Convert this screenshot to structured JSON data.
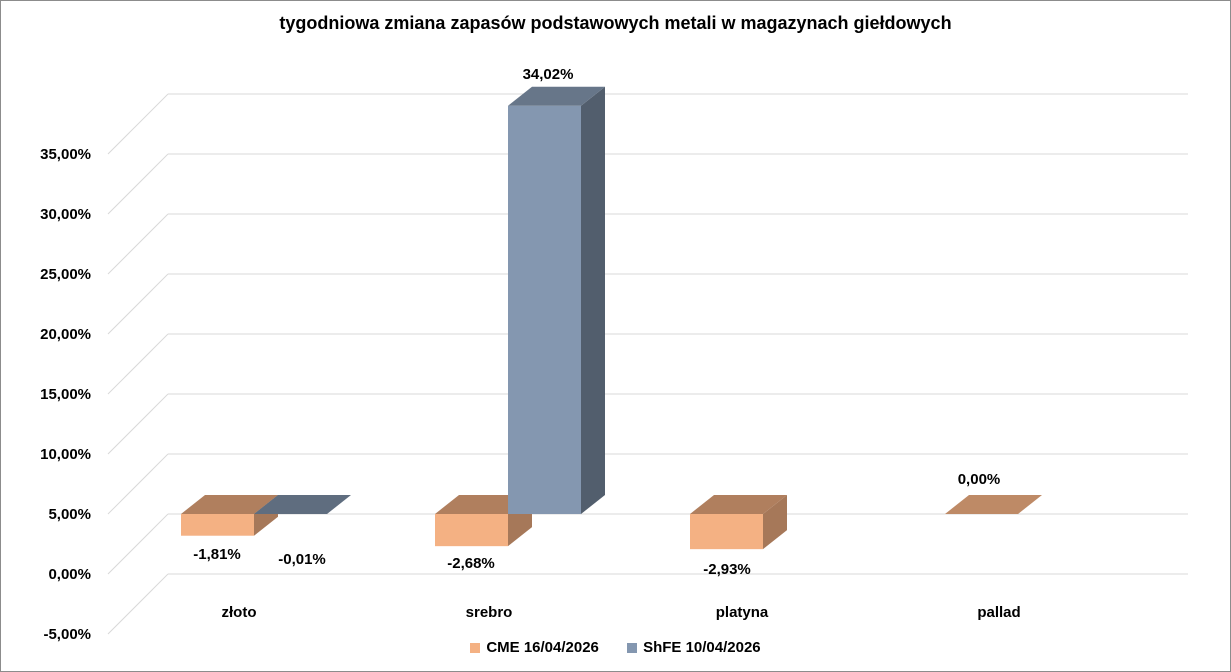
{
  "chart_data": {
    "type": "bar",
    "title": "tygodniowa zmiana zapasów podstawowych metali w magazynach giełdowych",
    "categories": [
      "złoto",
      "srebro",
      "platyna",
      "pallad"
    ],
    "series": [
      {
        "name": "CME 16/04/2026",
        "values": [
          -1.81,
          -2.68,
          -2.93,
          0.0
        ],
        "labels": [
          "-1,81%",
          "-2,68%",
          "-2,93%",
          "0,00%"
        ],
        "color": "#F4B183"
      },
      {
        "name": "ShFE 10/04/2026",
        "values": [
          -0.01,
          34.02,
          null,
          null
        ],
        "labels": [
          "-0,01%",
          "34,02%",
          null,
          null
        ],
        "color": "#8497B0"
      }
    ],
    "yticks": [
      -5,
      0,
      5,
      10,
      15,
      20,
      25,
      30,
      35
    ],
    "ytick_labels": [
      "-5,00%",
      "0,00%",
      "5,00%",
      "10,00%",
      "15,00%",
      "20,00%",
      "25,00%",
      "30,00%",
      "35,00%"
    ],
    "ylim": [
      -5,
      35
    ],
    "xlabel": "",
    "ylabel": "",
    "legend_position": "bottom",
    "grid": true,
    "three_d": true
  }
}
